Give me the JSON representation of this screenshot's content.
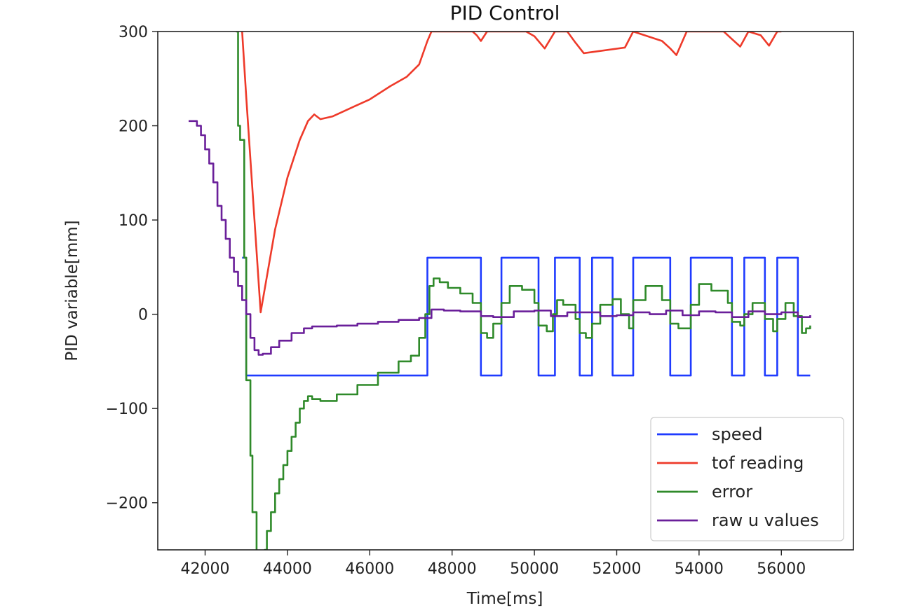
{
  "chart_data": {
    "type": "line",
    "title": "PID Control",
    "xlabel": "Time[ms]",
    "ylabel": "PID variable[mm]",
    "xlim": [
      40850,
      57750
    ],
    "ylim": [
      -250,
      300
    ],
    "xticks": [
      42000,
      44000,
      46000,
      48000,
      50000,
      52000,
      54000,
      56000
    ],
    "yticks": [
      -200,
      -100,
      0,
      100,
      200,
      300
    ],
    "grid": false,
    "legend_position": "lower-right",
    "colors": {
      "speed": "#1f3bff",
      "tof reading": "#ee3a2a",
      "error": "#2f8a2a",
      "raw u values": "#6a1f9a"
    },
    "series": [
      {
        "name": "speed",
        "step": true,
        "x": [
          42900,
          43000,
          47400,
          48700,
          49200,
          50100,
          50500,
          51100,
          51400,
          51900,
          52400,
          53300,
          53800,
          54800,
          55100,
          55600,
          55900,
          56400,
          56700
        ],
        "y": [
          60,
          -65,
          60,
          -65,
          60,
          -65,
          60,
          -65,
          60,
          -65,
          60,
          -65,
          60,
          -65,
          60,
          -65,
          60,
          -65,
          -65
        ]
      },
      {
        "name": "tof reading",
        "x": [
          42900,
          43000,
          43200,
          43350,
          43500,
          43700,
          44000,
          44300,
          44500,
          44650,
          44800,
          45100,
          45500,
          46000,
          46500,
          46900,
          47200,
          47400,
          47500,
          48500,
          48600,
          48700,
          48850,
          49000,
          49800,
          50000,
          50250,
          50500,
          50800,
          51000,
          51200,
          52200,
          52400,
          53100,
          53300,
          53450,
          53700,
          54000,
          54600,
          54800,
          55000,
          55200,
          55500,
          55700,
          55900,
          56000
        ],
        "y": [
          300,
          230,
          100,
          2,
          40,
          90,
          145,
          185,
          205,
          212,
          207,
          210,
          218,
          228,
          242,
          252,
          265,
          290,
          300,
          300,
          296,
          290,
          300,
          300,
          300,
          295,
          282,
          300,
          300,
          288,
          277,
          283,
          300,
          290,
          282,
          275,
          300,
          300,
          300,
          292,
          284,
          300,
          296,
          285,
          300,
          300
        ]
      },
      {
        "name": "error",
        "step": true,
        "x": [
          42750,
          42800,
          42850,
          42950,
          43000,
          43100,
          43150,
          43250,
          43350,
          43450,
          43500,
          43600,
          43700,
          43800,
          43900,
          44000,
          44100,
          44200,
          44300,
          44400,
          44500,
          44600,
          44800,
          45200,
          45700,
          46200,
          46700,
          47000,
          47200,
          47350,
          47450,
          47550,
          47700,
          47900,
          48200,
          48500,
          48700,
          48850,
          49000,
          49200,
          49400,
          49700,
          50000,
          50100,
          50300,
          50450,
          50550,
          50700,
          51000,
          51100,
          51250,
          51400,
          51600,
          51900,
          52100,
          52300,
          52400,
          52700,
          53100,
          53300,
          53500,
          53800,
          54000,
          54300,
          54700,
          54800,
          55000,
          55100,
          55300,
          55600,
          55800,
          55900,
          56100,
          56300,
          56500,
          56600,
          56700
        ],
        "y": [
          300,
          200,
          185,
          60,
          -70,
          -150,
          -210,
          -260,
          -260,
          -250,
          -230,
          -210,
          -190,
          -175,
          -160,
          -145,
          -130,
          -115,
          -100,
          -92,
          -87,
          -90,
          -92,
          -85,
          -75,
          -62,
          -50,
          -44,
          -25,
          0,
          30,
          38,
          34,
          28,
          22,
          12,
          -20,
          -25,
          -10,
          12,
          30,
          26,
          12,
          -12,
          -18,
          0,
          15,
          10,
          -5,
          -20,
          -25,
          -10,
          10,
          16,
          0,
          -15,
          15,
          30,
          15,
          -10,
          -15,
          10,
          32,
          25,
          12,
          -8,
          -12,
          0,
          12,
          -5,
          -18,
          -5,
          12,
          -2,
          -20,
          -15,
          -12
        ]
      },
      {
        "name": "raw u values",
        "step": true,
        "x": [
          41600,
          41700,
          41800,
          41900,
          42000,
          42100,
          42200,
          42300,
          42400,
          42500,
          42600,
          42700,
          42800,
          42900,
          43000,
          43100,
          43200,
          43300,
          43400,
          43600,
          43800,
          44100,
          44400,
          44600,
          44800,
          45200,
          45700,
          46200,
          46700,
          47200,
          47500,
          47800,
          48200,
          48700,
          49000,
          49500,
          50000,
          50400,
          50800,
          51200,
          51600,
          52000,
          52400,
          52800,
          53200,
          53600,
          54000,
          54400,
          54800,
          55200,
          55600,
          56000,
          56400,
          56700
        ],
        "y": [
          205,
          205,
          200,
          190,
          175,
          160,
          140,
          115,
          100,
          80,
          60,
          45,
          30,
          15,
          0,
          -25,
          -38,
          -43,
          -42,
          -35,
          -28,
          -20,
          -15,
          -13,
          -13,
          -12,
          -10,
          -8,
          -6,
          -4,
          5,
          4,
          3,
          -2,
          -3,
          3,
          4,
          -2,
          2,
          2,
          -2,
          -1,
          2,
          0,
          4,
          -1,
          3,
          2,
          -3,
          3,
          0,
          2,
          -3,
          -1
        ]
      }
    ]
  }
}
